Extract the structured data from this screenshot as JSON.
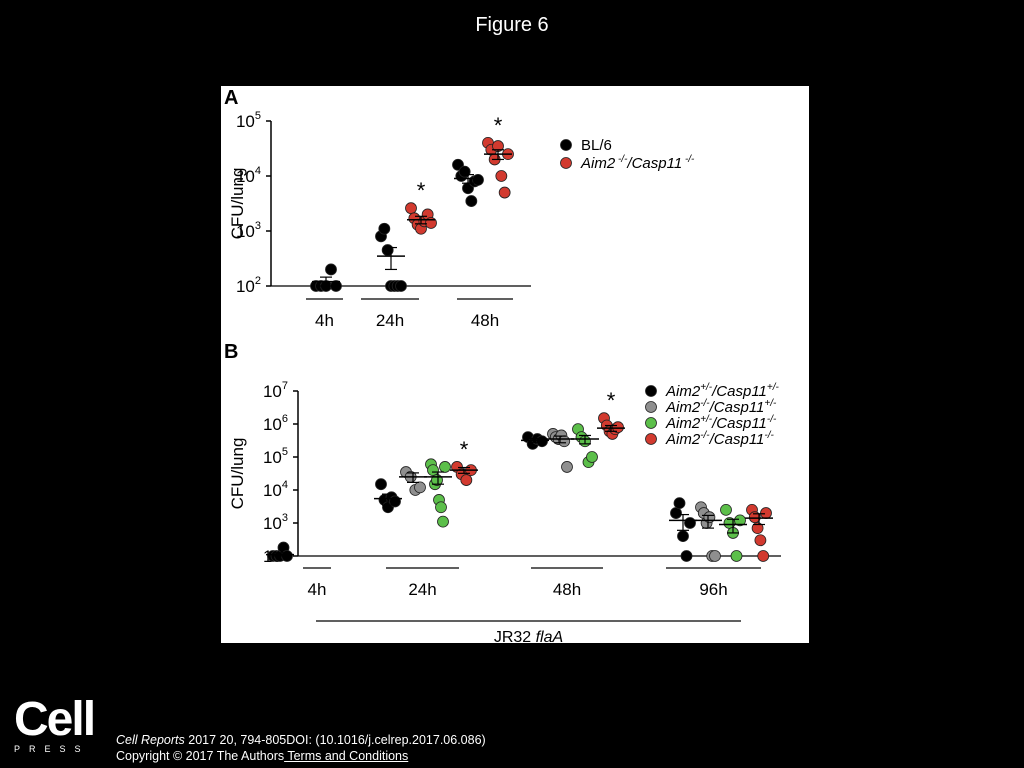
{
  "page": {
    "title": "Figure 6",
    "logo_word": "Cell",
    "logo_sub": "PRESS",
    "citation_journal": "Cell Reports",
    "citation_rest": " 2017 20, 794-805DOI: (10.1016/j.celrep.2017.06.086)",
    "copyright": "Copyright © 2017 The Authors",
    "terms_link": " Terms and Conditions"
  },
  "colors": {
    "black": "#000000",
    "gray": "#8f8f8f",
    "green": "#5cbf4a",
    "red": "#d23a2f"
  },
  "chart_data": [
    {
      "panel_label": "A",
      "type": "scatter",
      "ylabel": "CFU/lung",
      "yscale": "log10",
      "ylim": [
        100,
        100000
      ],
      "yticks": [
        100,
        1000,
        10000,
        100000
      ],
      "yticklabels": [
        {
          "base": "10",
          "exp": "2"
        },
        {
          "base": "10",
          "exp": "3"
        },
        {
          "base": "10",
          "exp": "4"
        },
        {
          "base": "10",
          "exp": "5"
        }
      ],
      "groups": [
        "4h",
        "24h",
        "48h"
      ],
      "legend": [
        {
          "label": "BL/6",
          "color": "#000000",
          "italic": false
        },
        {
          "label_main": "Aim2",
          "sup1": " -/-",
          "mid": "/Casp11",
          "sup2": " -/-",
          "color": "#d23a2f",
          "italic": true
        }
      ],
      "series": [
        {
          "name": "BL/6",
          "color": "#000000",
          "data": [
            {
              "group": "4h",
              "values": [
                100,
                100,
                100,
                200,
                100
              ],
              "mean": 120,
              "sem": 25
            },
            {
              "group": "24h",
              "values": [
                800,
                1100,
                450,
                100,
                100,
                100,
                100
              ],
              "mean": 350,
              "sem": 150
            },
            {
              "group": "48h",
              "values": [
                16000,
                10000,
                12000,
                6000,
                3500,
                8000,
                8500
              ],
              "mean": 9000,
              "sem": 1600
            }
          ]
        },
        {
          "name": "Aim2-/-/Casp11-/-",
          "color": "#d23a2f",
          "data": [
            {
              "group": "24h",
              "values": [
                2600,
                1700,
                1300,
                1100,
                1500,
                2000,
                1400
              ],
              "mean": 1600,
              "sem": 250
            },
            {
              "group": "48h",
              "values": [
                40000,
                30000,
                20000,
                35000,
                10000,
                5000,
                25000
              ],
              "mean": 25000,
              "sem": 5000
            }
          ]
        }
      ],
      "annotations": [
        {
          "text": "*",
          "group": "24h"
        },
        {
          "text": "*",
          "group": "48h"
        }
      ]
    },
    {
      "panel_label": "B",
      "type": "scatter",
      "ylabel": "CFU/lung",
      "yscale": "log10",
      "ylim": [
        100,
        10000000
      ],
      "yticks": [
        100,
        1000,
        10000,
        100000,
        1000000,
        10000000
      ],
      "yticklabels": [
        {
          "base": "10",
          "exp": "2"
        },
        {
          "base": "10",
          "exp": "3"
        },
        {
          "base": "10",
          "exp": "4"
        },
        {
          "base": "10",
          "exp": "5"
        },
        {
          "base": "10",
          "exp": "6"
        },
        {
          "base": "10",
          "exp": "7"
        }
      ],
      "groups": [
        "4h",
        "24h",
        "48h",
        "96h"
      ],
      "xlabel_main": "JR32 ",
      "xlabel_italic": "flaA",
      "legend": [
        {
          "a": "Aim2",
          "as": "+/-",
          "b": "/Casp11",
          "bs": "+/-",
          "color": "#000000"
        },
        {
          "a": "Aim2",
          "as": "-/-",
          "b": "/Casp11",
          "bs": "+/-",
          "color": "#8f8f8f"
        },
        {
          "a": "Aim2",
          "as": "+/-",
          "b": "/Casp11",
          "bs": "-/-",
          "color": "#5cbf4a"
        },
        {
          "a": "Aim2",
          "as": "-/-",
          "b": "/Casp11",
          "bs": "-/-",
          "color": "#d23a2f"
        }
      ],
      "series": [
        {
          "name": "Aim2+/-/Casp11+/-",
          "color": "#000000",
          "data": [
            {
              "group": "4h",
              "values": [
                100,
                100,
                100,
                180,
                100
              ],
              "mean": 110,
              "sem": 15
            },
            {
              "group": "24h",
              "values": [
                15000,
                5000,
                3000,
                6000,
                4500
              ],
              "mean": 5500,
              "sem": 2000
            },
            {
              "group": "48h",
              "values": [
                400000,
                250000,
                350000,
                300000
              ],
              "mean": 320000,
              "sem": 40000
            },
            {
              "group": "96h",
              "values": [
                2000,
                4000,
                400,
                100,
                1000
              ],
              "mean": 1200,
              "sem": 600
            }
          ]
        },
        {
          "name": "Aim2-/-/Casp11+/-",
          "color": "#8f8f8f",
          "data": [
            {
              "group": "24h",
              "values": [
                35000,
                25000,
                10000,
                12000
              ],
              "mean": 25000,
              "sem": 8000
            },
            {
              "group": "48h",
              "values": [
                500000,
                400000,
                350000,
                450000,
                300000,
                50000
              ],
              "mean": 350000,
              "sem": 80000
            },
            {
              "group": "96h",
              "values": [
                3000,
                2000,
                1000,
                1500,
                100,
                100
              ],
              "mean": 1200,
              "sem": 500
            }
          ]
        },
        {
          "name": "Aim2+/-/Casp11-/-",
          "color": "#5cbf4a",
          "data": [
            {
              "group": "24h",
              "values": [
                60000,
                40000,
                15000,
                20000,
                5000,
                3000,
                1100,
                50000
              ],
              "mean": 25000,
              "sem": 10000
            },
            {
              "group": "48h",
              "values": [
                700000,
                400000,
                300000,
                70000,
                100000
              ],
              "mean": 350000,
              "sem": 100000
            },
            {
              "group": "96h",
              "values": [
                2500,
                1000,
                500,
                100,
                1200
              ],
              "mean": 900,
              "sem": 400
            }
          ]
        },
        {
          "name": "Aim2-/-/Casp11-/-",
          "color": "#d23a2f",
          "data": [
            {
              "group": "24h",
              "values": [
                50000,
                30000,
                20000,
                40000
              ],
              "mean": 40000,
              "sem": 8000
            },
            {
              "group": "48h",
              "values": [
                1500000,
                900000,
                600000,
                500000,
                700000,
                800000
              ],
              "mean": 750000,
              "sem": 150000
            },
            {
              "group": "96h",
              "values": [
                2500,
                1500,
                700,
                300,
                100,
                2000
              ],
              "mean": 1400,
              "sem": 500
            }
          ]
        }
      ],
      "annotations": [
        {
          "text": "*",
          "group": "24h"
        },
        {
          "text": "*",
          "group": "48h"
        }
      ]
    }
  ]
}
